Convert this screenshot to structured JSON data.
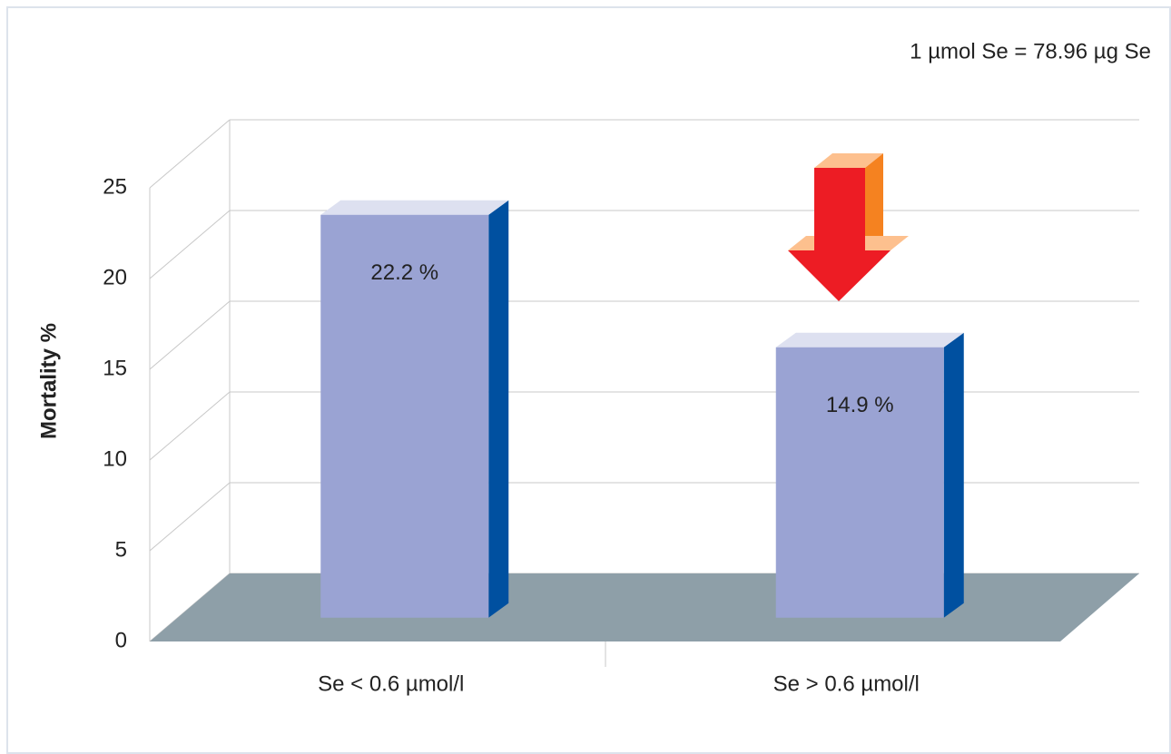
{
  "chart_data": {
    "type": "bar3d",
    "annotation": "1 µmol Se = 78.96 µg Se",
    "y_label": "Mortality %",
    "categories": [
      "Se < 0.6 µmol/l",
      "Se > 0.6 µmol/l"
    ],
    "values": [
      22.2,
      14.9
    ],
    "value_labels": [
      "22.2 %",
      "14.9 %"
    ],
    "color": "#9aa3d3",
    "ylim": [
      0,
      25
    ],
    "yticks": [
      0,
      5,
      10,
      15,
      20,
      25
    ],
    "grid": true
  }
}
